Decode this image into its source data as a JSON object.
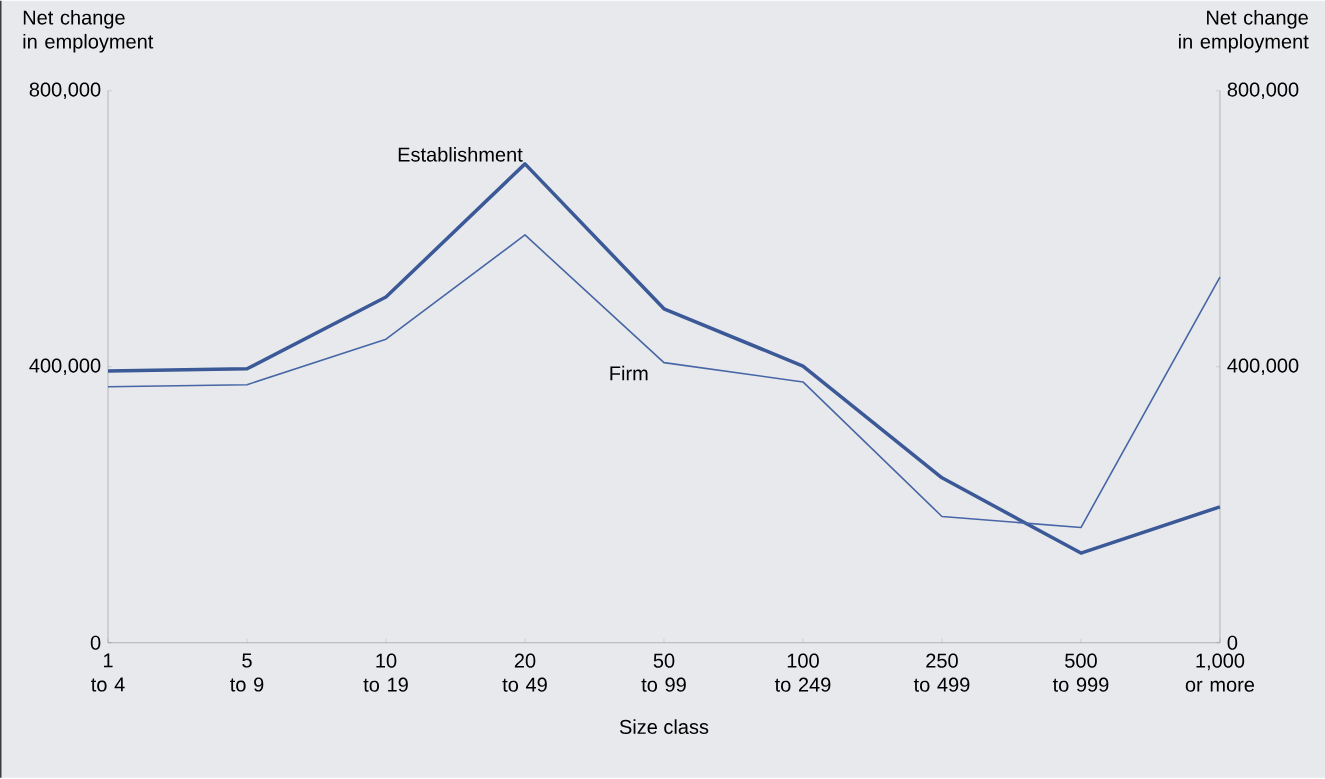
{
  "chart_data": {
    "type": "line",
    "xlabel": "Size class",
    "ylabel": "Net change\nin employment",
    "y2label": "Net change\nin employment",
    "categories": [
      "1\nto 4",
      "5\nto 9",
      "10\nto 19",
      "20\nto 49",
      "50\nto 99",
      "100\nto 249",
      "250\nto 499",
      "500\nto 999",
      "1,000\nor more"
    ],
    "series": [
      {
        "name": "Establishment",
        "color": "#3b5897",
        "values": [
          394000,
          397000,
          501000,
          694000,
          484000,
          401000,
          239000,
          130000,
          197000
        ]
      },
      {
        "name": "Firm",
        "color": "#4766a6",
        "values": [
          371000,
          374000,
          440000,
          591000,
          406000,
          378000,
          183000,
          167000,
          530000
        ]
      }
    ],
    "ylim": [
      0,
      800000
    ],
    "yticks": [
      0,
      {
        "value": 400000,
        "label": "400,000"
      },
      {
        "value": 800000,
        "label": "800,000"
      }
    ],
    "y2lim": [
      0,
      800000
    ],
    "y2ticks": [
      0,
      {
        "value": 400000,
        "label": "400,000"
      },
      {
        "value": 800000,
        "label": "800,000"
      }
    ],
    "grid": false,
    "marker": "none",
    "line_style": "solid"
  }
}
